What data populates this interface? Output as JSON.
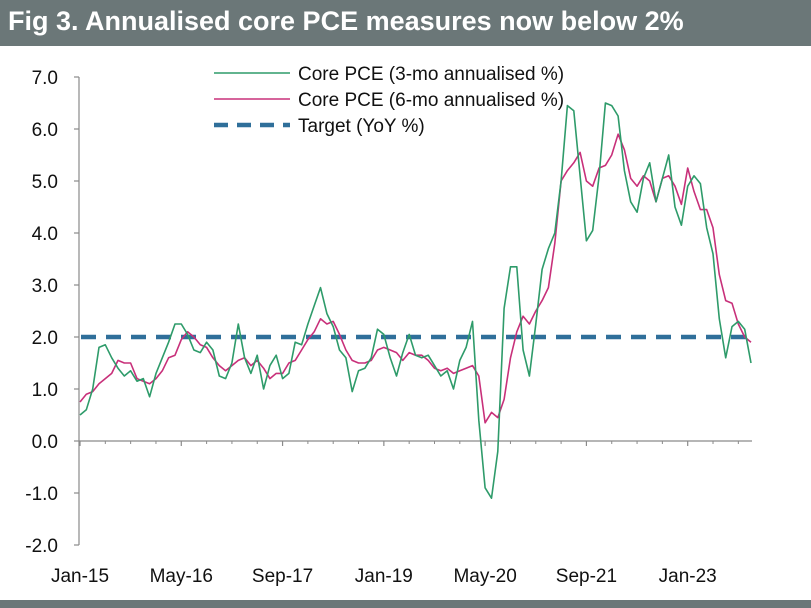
{
  "header": {
    "title": "Fig 3. Annualised core PCE measures now below 2%"
  },
  "colors": {
    "green": "#2e9b6a",
    "magenta": "#c8307a",
    "target": "#2f6f9a",
    "title_bg": "#6b7778"
  },
  "chart_data": {
    "type": "line",
    "title": "Fig 3. Annualised core PCE measures now below 2%",
    "xlabel": "",
    "ylabel": "",
    "ylim": [
      -2.0,
      7.0
    ],
    "yticks": [
      -2.0,
      -1.0,
      0.0,
      1.0,
      2.0,
      3.0,
      4.0,
      5.0,
      6.0,
      7.0
    ],
    "ytick_labels": [
      "-2.0",
      "-1.0",
      "0.0",
      "1.0",
      "2.0",
      "3.0",
      "4.0",
      "5.0",
      "6.0",
      "7.0"
    ],
    "xtick_labels": [
      "Jan-15",
      "May-16",
      "Sep-17",
      "Jan-19",
      "May-20",
      "Sep-21",
      "Jan-23"
    ],
    "xtick_index": [
      0,
      16,
      32,
      48,
      64,
      80,
      96
    ],
    "legend": [
      "Core PCE (3-mo annualised %)",
      "Core PCE (6-mo annualised %)",
      "Target (YoY %)"
    ],
    "series": [
      {
        "name": "Core PCE (3-mo annualised %)",
        "values": [
          0.5,
          0.6,
          1.0,
          1.8,
          1.85,
          1.6,
          1.4,
          1.25,
          1.35,
          1.15,
          1.2,
          0.85,
          1.3,
          1.6,
          1.9,
          2.25,
          2.25,
          2.05,
          1.75,
          1.7,
          1.9,
          1.75,
          1.25,
          1.2,
          1.5,
          2.25,
          1.6,
          1.3,
          1.65,
          1.0,
          1.45,
          1.65,
          1.2,
          1.3,
          1.9,
          1.85,
          2.25,
          2.6,
          2.95,
          2.45,
          2.2,
          1.75,
          1.6,
          0.95,
          1.35,
          1.4,
          1.6,
          2.15,
          2.05,
          1.6,
          1.25,
          1.7,
          2.05,
          1.65,
          1.6,
          1.65,
          1.45,
          1.25,
          1.35,
          1.0,
          1.55,
          1.8,
          2.3,
          0.4,
          -0.9,
          -1.1,
          -0.2,
          2.55,
          3.35,
          3.35,
          1.75,
          1.25,
          2.25,
          3.3,
          3.7,
          4.0,
          5.0,
          6.45,
          6.35,
          5.1,
          3.85,
          4.05,
          5.1,
          6.5,
          6.45,
          6.25,
          5.2,
          4.6,
          4.4,
          5.05,
          5.35,
          4.6,
          5.05,
          5.5,
          4.5,
          4.15,
          4.9,
          5.1,
          4.95,
          4.1,
          3.6,
          2.35,
          1.6,
          2.2,
          2.3,
          2.15,
          1.5
        ],
        "color": "#2e9b6a"
      },
      {
        "name": "Core PCE (6-mo annualised %)",
        "values": [
          0.75,
          0.9,
          0.95,
          1.1,
          1.2,
          1.3,
          1.55,
          1.5,
          1.5,
          1.2,
          1.15,
          1.1,
          1.2,
          1.35,
          1.6,
          1.65,
          1.95,
          2.1,
          2.0,
          1.85,
          1.8,
          1.6,
          1.45,
          1.35,
          1.45,
          1.55,
          1.6,
          1.45,
          1.55,
          1.4,
          1.2,
          1.3,
          1.3,
          1.5,
          1.55,
          1.75,
          1.95,
          2.1,
          2.35,
          2.25,
          2.3,
          2.05,
          1.75,
          1.55,
          1.5,
          1.5,
          1.55,
          1.75,
          1.8,
          1.75,
          1.7,
          1.55,
          1.7,
          1.65,
          1.65,
          1.55,
          1.4,
          1.35,
          1.4,
          1.3,
          1.35,
          1.4,
          1.45,
          1.25,
          0.35,
          0.55,
          0.45,
          0.8,
          1.6,
          2.1,
          2.4,
          2.25,
          2.5,
          2.7,
          2.95,
          3.8,
          5.0,
          5.2,
          5.35,
          5.55,
          5.0,
          4.9,
          5.25,
          5.3,
          5.5,
          5.9,
          5.6,
          5.05,
          4.9,
          5.1,
          5.0,
          4.6,
          5.05,
          5.1,
          4.9,
          4.55,
          5.25,
          4.8,
          4.45,
          4.45,
          4.1,
          3.2,
          2.7,
          2.65,
          2.25,
          2.0,
          1.9
        ],
        "color": "#c8307a"
      },
      {
        "name": "Target (YoY %)",
        "values": [
          2.0,
          2.0
        ],
        "color": "#2f6f9a"
      }
    ]
  }
}
